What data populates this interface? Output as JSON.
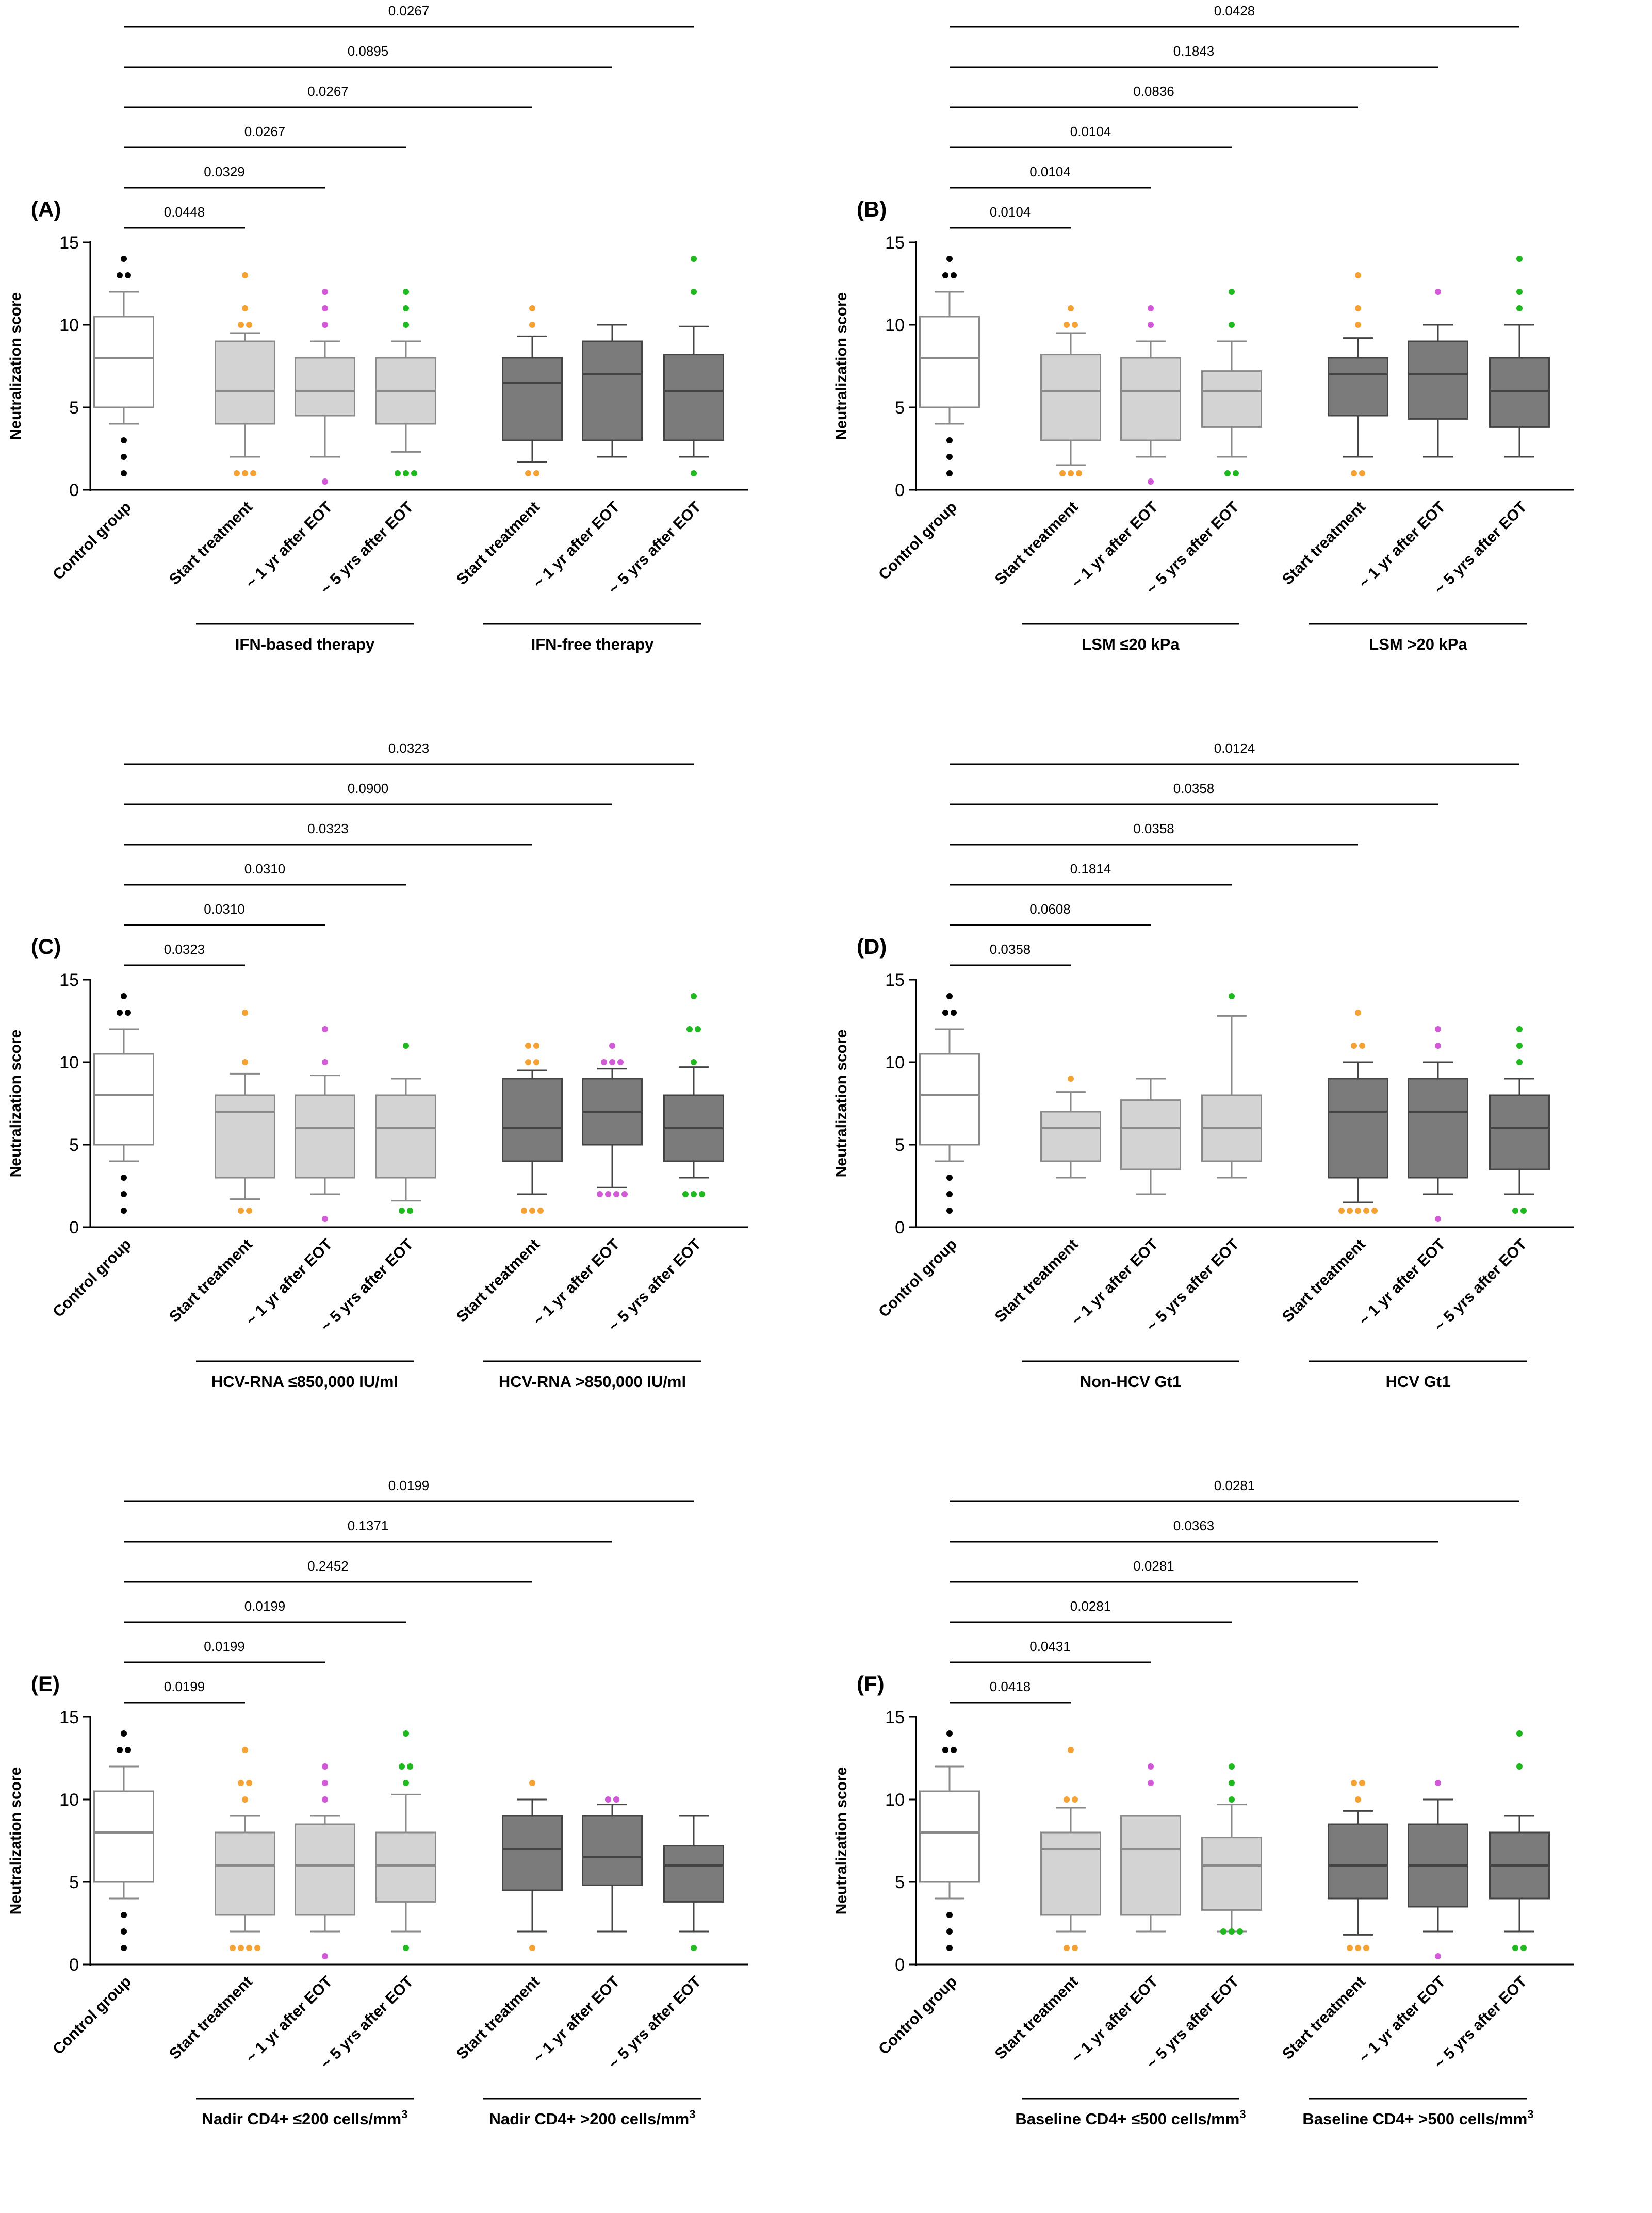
{
  "figure": {
    "y_label": "Neutralization score",
    "x_categories": [
      "Control group",
      "Start treatment",
      "~ 1 yr after EOT",
      "~ 5 yrs after EOT",
      "Start treatment",
      "~ 1 yr after EOT",
      "~ 5 yrs after EOT"
    ],
    "colors": {
      "control": "#ffffff",
      "group1": "#d3d3d3",
      "group2": "#7b7b7b",
      "outline": "#8a8a8a",
      "dark_outline": "#444444",
      "dot_control": "#000000",
      "dot_start": "#f5a234",
      "dot_1yr": "#d25ad9",
      "dot_5yr": "#1fb81f"
    }
  },
  "chart_data": [
    {
      "type": "box",
      "panel": "(A)",
      "ylim": [
        0,
        15
      ],
      "yticks": [
        0,
        5,
        10,
        15
      ],
      "pvalues": [
        "0.0448",
        "0.0329",
        "0.0267",
        "0.0267",
        "0.0895",
        "0.0267"
      ],
      "group_labels": [
        "IFN-based therapy",
        "IFN-free therapy"
      ],
      "boxes": [
        {
          "q1": 5,
          "median": 8,
          "q3": 10.5,
          "low": 4,
          "high": 12,
          "outliers": [
            1,
            2,
            3,
            13,
            13,
            14
          ]
        },
        {
          "q1": 4,
          "median": 6,
          "q3": 9,
          "low": 2,
          "high": 9.5,
          "outliers": [
            1,
            1,
            1,
            10,
            10,
            11,
            13
          ]
        },
        {
          "q1": 4.5,
          "median": 6,
          "q3": 8,
          "low": 2,
          "high": 9,
          "outliers": [
            0.5,
            10,
            11,
            12
          ]
        },
        {
          "q1": 4,
          "median": 6,
          "q3": 8,
          "low": 2.3,
          "high": 9,
          "outliers": [
            1,
            1,
            1,
            10,
            11,
            12
          ]
        },
        {
          "q1": 3,
          "median": 6.5,
          "q3": 8,
          "low": 1.7,
          "high": 9.3,
          "outliers": [
            1,
            1,
            10,
            11
          ]
        },
        {
          "q1": 3,
          "median": 7,
          "q3": 9,
          "low": 2,
          "high": 10,
          "outliers": []
        },
        {
          "q1": 3,
          "median": 6,
          "q3": 8.2,
          "low": 2,
          "high": 9.9,
          "outliers": [
            1,
            12,
            14
          ]
        }
      ]
    },
    {
      "type": "box",
      "panel": "(B)",
      "ylim": [
        0,
        15
      ],
      "yticks": [
        0,
        5,
        10,
        15
      ],
      "pvalues": [
        "0.0104",
        "0.0104",
        "0.0104",
        "0.0836",
        "0.1843",
        "0.0428"
      ],
      "group_labels": [
        "LSM ≤20 kPa",
        "LSM >20 kPa"
      ],
      "boxes": [
        {
          "q1": 5,
          "median": 8,
          "q3": 10.5,
          "low": 4,
          "high": 12,
          "outliers": [
            1,
            2,
            3,
            13,
            13,
            14
          ]
        },
        {
          "q1": 3,
          "median": 6,
          "q3": 8.2,
          "low": 1.5,
          "high": 9.5,
          "outliers": [
            1,
            1,
            1,
            10,
            10,
            11
          ]
        },
        {
          "q1": 3,
          "median": 6,
          "q3": 8,
          "low": 2,
          "high": 9,
          "outliers": [
            0.5,
            10,
            11
          ]
        },
        {
          "q1": 3.8,
          "median": 6,
          "q3": 7.2,
          "low": 2,
          "high": 9,
          "outliers": [
            1,
            1,
            10,
            12
          ]
        },
        {
          "q1": 4.5,
          "median": 7,
          "q3": 8,
          "low": 2,
          "high": 9.2,
          "outliers": [
            1,
            1,
            10,
            11,
            13
          ]
        },
        {
          "q1": 4.3,
          "median": 7,
          "q3": 9,
          "low": 2,
          "high": 10,
          "outliers": [
            12
          ]
        },
        {
          "q1": 3.8,
          "median": 6,
          "q3": 8,
          "low": 2,
          "high": 10,
          "outliers": [
            11,
            12,
            14
          ]
        }
      ]
    },
    {
      "type": "box",
      "panel": "(C)",
      "ylim": [
        0,
        15
      ],
      "yticks": [
        0,
        5,
        10,
        15
      ],
      "pvalues": [
        "0.0323",
        "0.0310",
        "0.0310",
        "0.0323",
        "0.0900",
        "0.0323"
      ],
      "group_labels": [
        "HCV-RNA ≤850,000 IU/ml",
        "HCV-RNA >850,000 IU/ml"
      ],
      "boxes": [
        {
          "q1": 5,
          "median": 8,
          "q3": 10.5,
          "low": 4,
          "high": 12,
          "outliers": [
            1,
            2,
            3,
            13,
            13,
            14
          ]
        },
        {
          "q1": 3,
          "median": 7,
          "q3": 8,
          "low": 1.7,
          "high": 9.3,
          "outliers": [
            1,
            1,
            10,
            13
          ]
        },
        {
          "q1": 3,
          "median": 6,
          "q3": 8,
          "low": 2,
          "high": 9.2,
          "outliers": [
            0.5,
            10,
            12
          ]
        },
        {
          "q1": 3,
          "median": 6,
          "q3": 8,
          "low": 1.6,
          "high": 9,
          "outliers": [
            1,
            1,
            11
          ]
        },
        {
          "q1": 4,
          "median": 6,
          "q3": 9,
          "low": 2,
          "high": 9.5,
          "outliers": [
            1,
            1,
            1,
            10,
            10,
            11,
            11
          ]
        },
        {
          "q1": 5,
          "median": 7,
          "q3": 9,
          "low": 2.4,
          "high": 9.6,
          "outliers": [
            2,
            2,
            2,
            2,
            10,
            10,
            10,
            11
          ]
        },
        {
          "q1": 4,
          "median": 6,
          "q3": 8,
          "low": 3,
          "high": 9.7,
          "outliers": [
            2,
            2,
            2,
            10,
            12,
            12,
            14
          ]
        }
      ]
    },
    {
      "type": "box",
      "panel": "(D)",
      "ylim": [
        0,
        15
      ],
      "yticks": [
        0,
        5,
        10,
        15
      ],
      "pvalues": [
        "0.0358",
        "0.0608",
        "0.1814",
        "0.0358",
        "0.0358",
        "0.0124"
      ],
      "group_labels": [
        "Non-HCV Gt1",
        "HCV Gt1"
      ],
      "boxes": [
        {
          "q1": 5,
          "median": 8,
          "q3": 10.5,
          "low": 4,
          "high": 12,
          "outliers": [
            1,
            2,
            3,
            13,
            13,
            14
          ]
        },
        {
          "q1": 4,
          "median": 6,
          "q3": 7,
          "low": 3,
          "high": 8.2,
          "outliers": [
            9
          ]
        },
        {
          "q1": 3.5,
          "median": 6,
          "q3": 7.7,
          "low": 2,
          "high": 9,
          "outliers": []
        },
        {
          "q1": 4,
          "median": 6,
          "q3": 8,
          "low": 3,
          "high": 12.8,
          "outliers": [
            14
          ]
        },
        {
          "q1": 3,
          "median": 7,
          "q3": 9,
          "low": 1.5,
          "high": 10,
          "outliers": [
            1,
            1,
            1,
            1,
            1,
            11,
            11,
            13
          ]
        },
        {
          "q1": 3,
          "median": 7,
          "q3": 9,
          "low": 2,
          "high": 10,
          "outliers": [
            0.5,
            11,
            12
          ]
        },
        {
          "q1": 3.5,
          "median": 6,
          "q3": 8,
          "low": 2,
          "high": 9,
          "outliers": [
            1,
            1,
            10,
            11,
            12
          ]
        }
      ]
    },
    {
      "type": "box",
      "panel": "(E)",
      "ylim": [
        0,
        15
      ],
      "yticks": [
        0,
        5,
        10,
        15
      ],
      "pvalues": [
        "0.0199",
        "0.0199",
        "0.0199",
        "0.2452",
        "0.1371",
        "0.0199"
      ],
      "group_labels": [
        "Nadir CD4+ ≤200 cells/mm",
        "Nadir CD4+ >200 cells/mm"
      ],
      "group_label_superscripts": [
        "3",
        "3"
      ],
      "boxes": [
        {
          "q1": 5,
          "median": 8,
          "q3": 10.5,
          "low": 4,
          "high": 12,
          "outliers": [
            1,
            2,
            3,
            13,
            13,
            14
          ]
        },
        {
          "q1": 3,
          "median": 6,
          "q3": 8,
          "low": 2,
          "high": 9,
          "outliers": [
            1,
            1,
            1,
            1,
            10,
            11,
            11,
            13
          ]
        },
        {
          "q1": 3,
          "median": 6,
          "q3": 8.5,
          "low": 2,
          "high": 9,
          "outliers": [
            0.5,
            10,
            11,
            12
          ]
        },
        {
          "q1": 3.8,
          "median": 6,
          "q3": 8,
          "low": 2,
          "high": 10.3,
          "outliers": [
            1,
            11,
            12,
            12,
            14
          ]
        },
        {
          "q1": 4.5,
          "median": 7,
          "q3": 9,
          "low": 2,
          "high": 10,
          "outliers": [
            1,
            11
          ]
        },
        {
          "q1": 4.8,
          "median": 6.5,
          "q3": 9,
          "low": 2,
          "high": 9.7,
          "outliers": [
            10,
            10
          ]
        },
        {
          "q1": 3.8,
          "median": 6,
          "q3": 7.2,
          "low": 2,
          "high": 9,
          "outliers": [
            1
          ]
        }
      ]
    },
    {
      "type": "box",
      "panel": "(F)",
      "ylim": [
        0,
        15
      ],
      "yticks": [
        0,
        5,
        10,
        15
      ],
      "pvalues": [
        "0.0418",
        "0.0431",
        "0.0281",
        "0.0281",
        "0.0363",
        "0.0281"
      ],
      "group_labels": [
        "Baseline CD4+ ≤500 cells/mm",
        "Baseline CD4+ >500 cells/mm"
      ],
      "group_label_superscripts": [
        "3",
        "3"
      ],
      "boxes": [
        {
          "q1": 5,
          "median": 8,
          "q3": 10.5,
          "low": 4,
          "high": 12,
          "outliers": [
            1,
            2,
            3,
            13,
            13,
            14
          ]
        },
        {
          "q1": 3,
          "median": 7,
          "q3": 8,
          "low": 2,
          "high": 9.5,
          "outliers": [
            1,
            1,
            10,
            10,
            13
          ]
        },
        {
          "q1": 3,
          "median": 7,
          "q3": 9,
          "low": 2,
          "high": 9,
          "outliers": [
            11,
            12
          ]
        },
        {
          "q1": 3.3,
          "median": 6,
          "q3": 7.7,
          "low": 2,
          "high": 9.7,
          "outliers": [
            2,
            2,
            2,
            10,
            11,
            12
          ]
        },
        {
          "q1": 4,
          "median": 6,
          "q3": 8.5,
          "low": 1.8,
          "high": 9.3,
          "outliers": [
            1,
            1,
            1,
            10,
            11,
            11
          ]
        },
        {
          "q1": 3.5,
          "median": 6,
          "q3": 8.5,
          "low": 2,
          "high": 10,
          "outliers": [
            0.5,
            11
          ]
        },
        {
          "q1": 4,
          "median": 6,
          "q3": 8,
          "low": 2,
          "high": 9,
          "outliers": [
            1,
            1,
            12,
            14
          ]
        }
      ]
    }
  ]
}
